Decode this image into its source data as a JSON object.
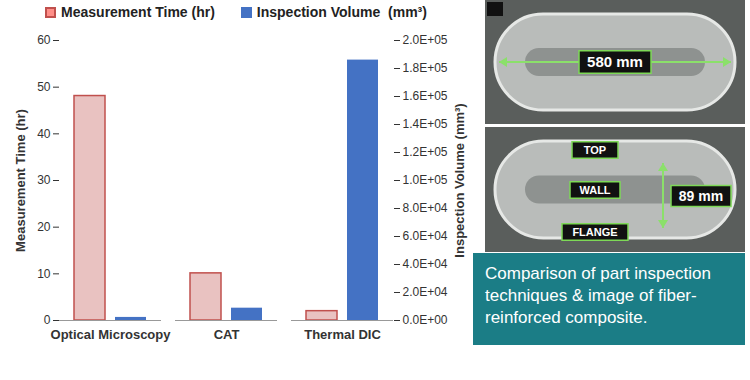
{
  "chart_data": {
    "type": "bar",
    "categories": [
      "Optical Microscopy",
      "CAT",
      "Thermal DIC"
    ],
    "series": [
      {
        "name": "Measurement Time (hr)",
        "color": "#c0504d",
        "values": [
          48.1,
          10.1,
          2.0
        ]
      },
      {
        "name": "Inspection Volume  (mm³)",
        "color": "#4472c4",
        "values": [
          2200,
          8800,
          186000
        ],
        "axis": "y2"
      }
    ],
    "ylabel": "Measurement Time (hr)",
    "y2label": "Inspection Volume (mm³)",
    "ylim": [
      0,
      60
    ],
    "yticks": [
      0,
      10,
      20,
      30,
      40,
      50,
      60
    ],
    "y2lim": [
      0,
      200000
    ],
    "y2ticks": [
      {
        "value": 0,
        "label": "0.0E+00"
      },
      {
        "value": 20000,
        "label": "2.0E+04"
      },
      {
        "value": 40000,
        "label": "4.0E+04"
      },
      {
        "value": 60000,
        "label": "6.0E+04"
      },
      {
        "value": 80000,
        "label": "8.0E+04"
      },
      {
        "value": 100000,
        "label": "1.0E+05"
      },
      {
        "value": 120000,
        "label": "1.2E+05"
      },
      {
        "value": 140000,
        "label": "1.4E+05"
      },
      {
        "value": 160000,
        "label": "1.6E+05"
      },
      {
        "value": 180000,
        "label": "1.8E+05"
      },
      {
        "value": 200000,
        "label": "2.0E+05"
      }
    ],
    "legend": "top",
    "grid": false,
    "annotations": [
      "580 mm",
      "TOP",
      "WALL",
      "89 mm",
      "FLANGE",
      "Comparison of part inspection techniques & image of fiber-reinforced composite."
    ]
  }
}
